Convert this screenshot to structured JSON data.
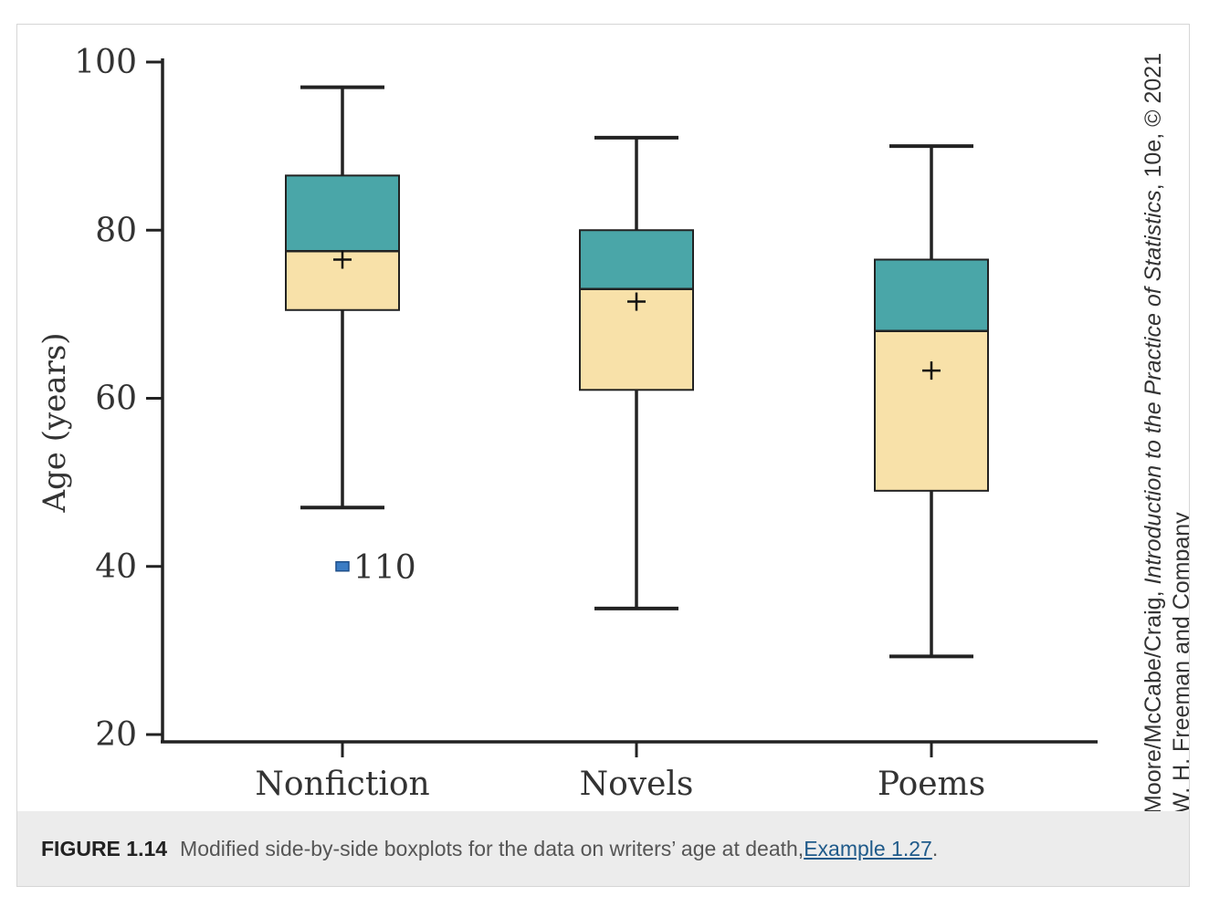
{
  "chart_data": {
    "type": "boxplot",
    "ylabel": "Age (years)",
    "xlabel": "",
    "ylim": [
      20,
      100
    ],
    "yticks": [
      20,
      40,
      60,
      80,
      100
    ],
    "categories": [
      "Nonfiction",
      "Novels",
      "Poems"
    ],
    "boxes": [
      {
        "category": "Nonfiction",
        "whisker_low": 47,
        "q1": 70.5,
        "median": 77.5,
        "q3": 86.5,
        "whisker_high": 97,
        "mean": 76.5
      },
      {
        "category": "Novels",
        "whisker_low": 35,
        "q1": 61,
        "median": 73,
        "q3": 80,
        "whisker_high": 91,
        "mean": 71.5
      },
      {
        "category": "Poems",
        "whisker_low": 29.3,
        "q1": 49,
        "median": 68,
        "q3": 76.5,
        "whisker_high": 90,
        "mean": 63.3
      }
    ],
    "outliers": [
      {
        "category": "Nonfiction",
        "value": 40,
        "label": "110"
      }
    ],
    "colors": {
      "upper_box": "#4aa6a8",
      "lower_box": "#f8e1a9",
      "line": "#222222",
      "outlier": "#3b7cc4"
    },
    "grid": false
  },
  "credit": {
    "line1_plain": "Moore/McCabe/Craig, ",
    "line1_italic": "Introduction to the Practice of Statistics",
    "line1_tail": ", 10e, © 2021",
    "line2": "W. H. Freeman and Company"
  },
  "caption": {
    "label": "FIGURE 1.14",
    "text": "Modified side-by-side boxplots for the data on writers’ age at death, ",
    "link_text": "Example 1.27",
    "end": "."
  }
}
